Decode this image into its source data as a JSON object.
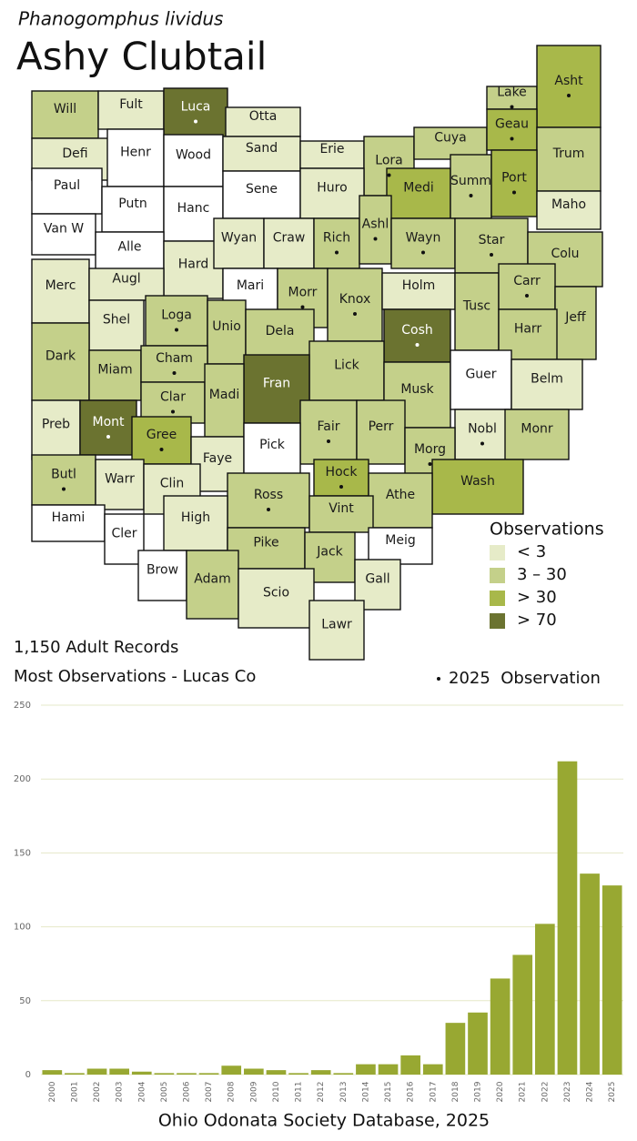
{
  "header": {
    "subtitle": "Phanogomphus lividus",
    "title": "Ashy Clubtail"
  },
  "map": {
    "counties": [
      {
        "name": "Will",
        "color": "#c4d08a",
        "obs2025": false
      },
      {
        "name": "Fult",
        "color": "#e6ebc8",
        "obs2025": false
      },
      {
        "name": "Luca",
        "color": "#6b7330",
        "obs2025": true
      },
      {
        "name": "Otta",
        "color": "#e6ebc8",
        "obs2025": false
      },
      {
        "name": "Defi",
        "color": "#e6ebc8",
        "obs2025": false
      },
      {
        "name": "Henr",
        "color": "#ffffff",
        "obs2025": false
      },
      {
        "name": "Wood",
        "color": "#ffffff",
        "obs2025": false
      },
      {
        "name": "Sand",
        "color": "#e6ebc8",
        "obs2025": false
      },
      {
        "name": "Erie",
        "color": "#e6ebc8",
        "obs2025": false
      },
      {
        "name": "Lora",
        "color": "#c4d08a",
        "obs2025": true
      },
      {
        "name": "Cuya",
        "color": "#c4d08a",
        "obs2025": false
      },
      {
        "name": "Lake",
        "color": "#c4d08a",
        "obs2025": true
      },
      {
        "name": "Asht",
        "color": "#a8b84a",
        "obs2025": true
      },
      {
        "name": "Geau",
        "color": "#a8b84a",
        "obs2025": true
      },
      {
        "name": "Trum",
        "color": "#c4d08a",
        "obs2025": false
      },
      {
        "name": "Paul",
        "color": "#ffffff",
        "obs2025": false
      },
      {
        "name": "Putn",
        "color": "#ffffff",
        "obs2025": false
      },
      {
        "name": "Hanc",
        "color": "#ffffff",
        "obs2025": false
      },
      {
        "name": "Sene",
        "color": "#ffffff",
        "obs2025": false
      },
      {
        "name": "Huro",
        "color": "#e6ebc8",
        "obs2025": false
      },
      {
        "name": "Medi",
        "color": "#a8b84a",
        "obs2025": false
      },
      {
        "name": "Summ",
        "color": "#c4d08a",
        "obs2025": true
      },
      {
        "name": "Port",
        "color": "#a8b84a",
        "obs2025": true
      },
      {
        "name": "Maho",
        "color": "#e6ebc8",
        "obs2025": false
      },
      {
        "name": "Van W",
        "color": "#ffffff",
        "obs2025": false
      },
      {
        "name": "Alle",
        "color": "#ffffff",
        "obs2025": false
      },
      {
        "name": "Hard",
        "color": "#e6ebc8",
        "obs2025": false
      },
      {
        "name": "Wyan",
        "color": "#e6ebc8",
        "obs2025": false
      },
      {
        "name": "Craw",
        "color": "#e6ebc8",
        "obs2025": false
      },
      {
        "name": "Rich",
        "color": "#c4d08a",
        "obs2025": true
      },
      {
        "name": "Ashl",
        "color": "#c4d08a",
        "obs2025": true
      },
      {
        "name": "Wayn",
        "color": "#c4d08a",
        "obs2025": true
      },
      {
        "name": "Star",
        "color": "#c4d08a",
        "obs2025": true
      },
      {
        "name": "Colu",
        "color": "#c4d08a",
        "obs2025": false
      },
      {
        "name": "Merc",
        "color": "#e6ebc8",
        "obs2025": false
      },
      {
        "name": "Augl",
        "color": "#e6ebc8",
        "obs2025": false
      },
      {
        "name": "Mari",
        "color": "#ffffff",
        "obs2025": false
      },
      {
        "name": "Morr",
        "color": "#c4d08a",
        "obs2025": true
      },
      {
        "name": "Knox",
        "color": "#c4d08a",
        "obs2025": true
      },
      {
        "name": "Holm",
        "color": "#e6ebc8",
        "obs2025": false
      },
      {
        "name": "Tusc",
        "color": "#c4d08a",
        "obs2025": false
      },
      {
        "name": "Carr",
        "color": "#c4d08a",
        "obs2025": true
      },
      {
        "name": "Jeff",
        "color": "#c4d08a",
        "obs2025": false
      },
      {
        "name": "Shel",
        "color": "#e6ebc8",
        "obs2025": false
      },
      {
        "name": "Loga",
        "color": "#c4d08a",
        "obs2025": true
      },
      {
        "name": "Unio",
        "color": "#c4d08a",
        "obs2025": false
      },
      {
        "name": "Dela",
        "color": "#c4d08a",
        "obs2025": false
      },
      {
        "name": "Cosh",
        "color": "#6b7330",
        "obs2025": true
      },
      {
        "name": "Harr",
        "color": "#c4d08a",
        "obs2025": false
      },
      {
        "name": "Dark",
        "color": "#c4d08a",
        "obs2025": false
      },
      {
        "name": "Miam",
        "color": "#c4d08a",
        "obs2025": false
      },
      {
        "name": "Cham",
        "color": "#c4d08a",
        "obs2025": true
      },
      {
        "name": "Lick",
        "color": "#c4d08a",
        "obs2025": false
      },
      {
        "name": "Musk",
        "color": "#c4d08a",
        "obs2025": false
      },
      {
        "name": "Guer",
        "color": "#ffffff",
        "obs2025": false
      },
      {
        "name": "Belm",
        "color": "#e6ebc8",
        "obs2025": false
      },
      {
        "name": "Fran",
        "color": "#6b7330",
        "obs2025": false
      },
      {
        "name": "Clar",
        "color": "#c4d08a",
        "obs2025": true
      },
      {
        "name": "Madi",
        "color": "#c4d08a",
        "obs2025": false
      },
      {
        "name": "Preb",
        "color": "#e6ebc8",
        "obs2025": false
      },
      {
        "name": "Mont",
        "color": "#6b7330",
        "obs2025": true
      },
      {
        "name": "Gree",
        "color": "#a8b84a",
        "obs2025": true
      },
      {
        "name": "Fair",
        "color": "#c4d08a",
        "obs2025": true
      },
      {
        "name": "Perr",
        "color": "#c4d08a",
        "obs2025": false
      },
      {
        "name": "Nobl",
        "color": "#e6ebc8",
        "obs2025": true
      },
      {
        "name": "Monr",
        "color": "#c4d08a",
        "obs2025": false
      },
      {
        "name": "Faye",
        "color": "#e6ebc8",
        "obs2025": false
      },
      {
        "name": "Pick",
        "color": "#ffffff",
        "obs2025": false
      },
      {
        "name": "Morg",
        "color": "#c4d08a",
        "obs2025": true
      },
      {
        "name": "Butl",
        "color": "#c4d08a",
        "obs2025": true
      },
      {
        "name": "Warr",
        "color": "#e6ebc8",
        "obs2025": false
      },
      {
        "name": "Clin",
        "color": "#e6ebc8",
        "obs2025": false
      },
      {
        "name": "Hock",
        "color": "#a8b84a",
        "obs2025": true
      },
      {
        "name": "Wash",
        "color": "#a8b84a",
        "obs2025": false
      },
      {
        "name": "Ross",
        "color": "#c4d08a",
        "obs2025": true
      },
      {
        "name": "Athe",
        "color": "#c4d08a",
        "obs2025": false
      },
      {
        "name": "High",
        "color": "#e6ebc8",
        "obs2025": false
      },
      {
        "name": "Vint",
        "color": "#c4d08a",
        "obs2025": false
      },
      {
        "name": "Hami",
        "color": "#ffffff",
        "obs2025": false
      },
      {
        "name": "Cler",
        "color": "#ffffff",
        "obs2025": false
      },
      {
        "name": "Brow",
        "color": "#ffffff",
        "obs2025": false
      },
      {
        "name": "Pike",
        "color": "#c4d08a",
        "obs2025": false
      },
      {
        "name": "Jack",
        "color": "#c4d08a",
        "obs2025": false
      },
      {
        "name": "Meig",
        "color": "#ffffff",
        "obs2025": false
      },
      {
        "name": "Adam",
        "color": "#c4d08a",
        "obs2025": false
      },
      {
        "name": "Scio",
        "color": "#e6ebc8",
        "obs2025": false
      },
      {
        "name": "Gall",
        "color": "#e6ebc8",
        "obs2025": false
      },
      {
        "name": "Lawr",
        "color": "#e6ebc8",
        "obs2025": false
      }
    ],
    "legend": {
      "title": "Observations",
      "items": [
        {
          "label": "< 3",
          "color": "#e6ebc8"
        },
        {
          "label": "3 – 30",
          "color": "#c4d08a"
        },
        {
          "label": "> 30",
          "color": "#a8b84a"
        },
        {
          "label": "> 70",
          "color": "#6b7330"
        }
      ]
    },
    "dot_legend": "2025  Observation"
  },
  "notes": {
    "records": "1,150 Adult Records",
    "most": "Most Observations - Lucas Co"
  },
  "chart_data": {
    "type": "bar",
    "categories": [
      "2000",
      "2001",
      "2002",
      "2003",
      "2004",
      "2005",
      "2006",
      "2007",
      "2008",
      "2009",
      "2010",
      "2011",
      "2012",
      "2013",
      "2014",
      "2015",
      "2016",
      "2017",
      "2018",
      "2019",
      "2020",
      "2021",
      "2022",
      "2023",
      "2024",
      "2025"
    ],
    "values": [
      3,
      1,
      4,
      4,
      2,
      1,
      1,
      1,
      6,
      4,
      3,
      1,
      3,
      1,
      7,
      7,
      13,
      7,
      35,
      42,
      65,
      81,
      102,
      212,
      136,
      128
    ],
    "color": "#98a832",
    "ylim": [
      0,
      250
    ],
    "yticks": [
      0,
      50,
      100,
      150,
      200,
      250
    ],
    "grid": true
  },
  "footer": "Ohio Odonata Society Database, 2025"
}
